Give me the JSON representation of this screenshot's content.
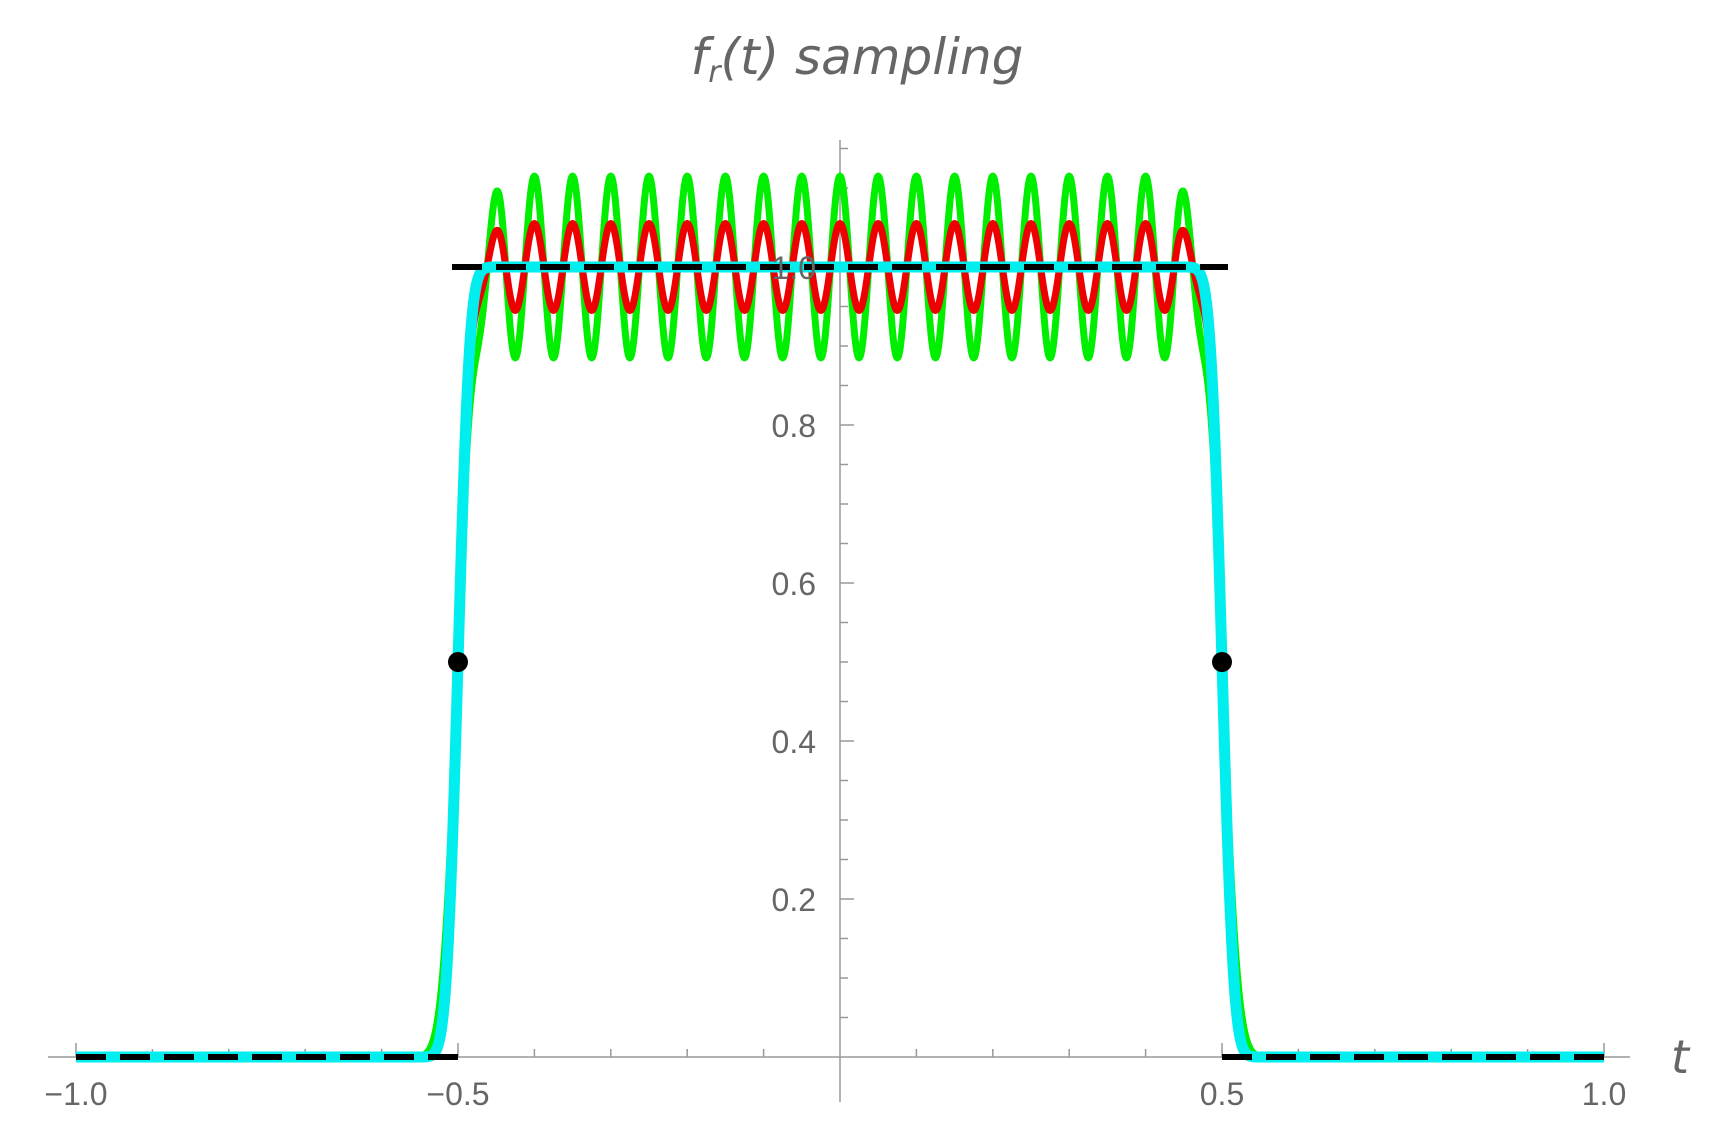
{
  "chart_data": {
    "type": "line",
    "title": {
      "base": "f",
      "sub": "r",
      "rest": "(t) sampling"
    },
    "xlabel": "t",
    "ylabel": "",
    "xlim": [
      -1.0,
      1.0
    ],
    "ylim": [
      0,
      1.15
    ],
    "x_ticks": [
      {
        "value": -1.0,
        "label": "−1.0"
      },
      {
        "value": -0.5,
        "label": "−0.5"
      },
      {
        "value": 0.5,
        "label": "0.5"
      },
      {
        "value": 1.0,
        "label": "1.0"
      }
    ],
    "y_ticks": [
      {
        "value": 0.2,
        "label": "0.2"
      },
      {
        "value": 0.4,
        "label": "0.4"
      },
      {
        "value": 0.6,
        "label": "0.6"
      },
      {
        "value": 0.8,
        "label": "0.8"
      },
      {
        "value": 1.0,
        "label": "1.0"
      }
    ],
    "series": [
      {
        "color": "#00ee00",
        "ripple_amplitude": 0.115,
        "cycles_per_unit": 20,
        "edge_width": 0.016
      },
      {
        "color": "#ee0000",
        "ripple_amplitude": 0.055,
        "cycles_per_unit": 20,
        "edge_width": 0.013
      },
      {
        "color": "#00eeee",
        "smooth": true,
        "edge_width": 0.012,
        "flat_half_width": 0.44
      }
    ],
    "reference_line": {
      "style": "dashed",
      "color": "#000000",
      "segments": [
        {
          "x": [
            -1.0,
            -0.5
          ],
          "y": 0
        },
        {
          "x": [
            -0.5,
            0.5
          ],
          "y": 1.0
        },
        {
          "x": [
            0.5,
            1.0
          ],
          "y": 0
        }
      ]
    },
    "points": [
      {
        "x": -0.5,
        "y": 0.5,
        "color": "#000000"
      },
      {
        "x": 0.5,
        "y": 0.5,
        "color": "#000000"
      }
    ],
    "grid": false,
    "legend": "none"
  }
}
